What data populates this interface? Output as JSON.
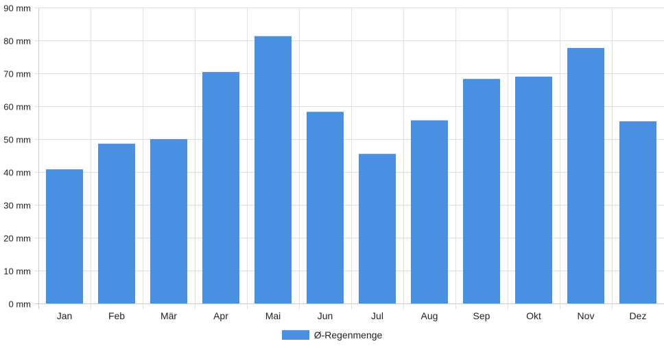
{
  "chart_data": {
    "type": "bar",
    "categories": [
      "Jan",
      "Feb",
      "Mär",
      "Apr",
      "Mai",
      "Jun",
      "Jul",
      "Aug",
      "Sep",
      "Okt",
      "Nov",
      "Dez"
    ],
    "series": [
      {
        "name": "Ø-Regenmenge",
        "values": [
          40.8,
          48.6,
          50.0,
          70.4,
          81.3,
          58.3,
          45.5,
          55.7,
          68.3,
          69.0,
          77.7,
          55.4
        ]
      }
    ],
    "y_unit": "mm",
    "ylim": [
      0,
      90
    ],
    "y_ticks": [
      0,
      10,
      20,
      30,
      40,
      50,
      60,
      70,
      80,
      90
    ],
    "y_tick_labels": [
      "0 mm",
      "10 mm",
      "20 mm",
      "30 mm",
      "40 mm",
      "50 mm",
      "60 mm",
      "70 mm",
      "80 mm",
      "90 mm"
    ],
    "grid": true,
    "legend_position": "bottom",
    "colors": {
      "bar": "#4a90e2",
      "grid": "#e0e0e0",
      "axis": "#cccccc"
    }
  }
}
